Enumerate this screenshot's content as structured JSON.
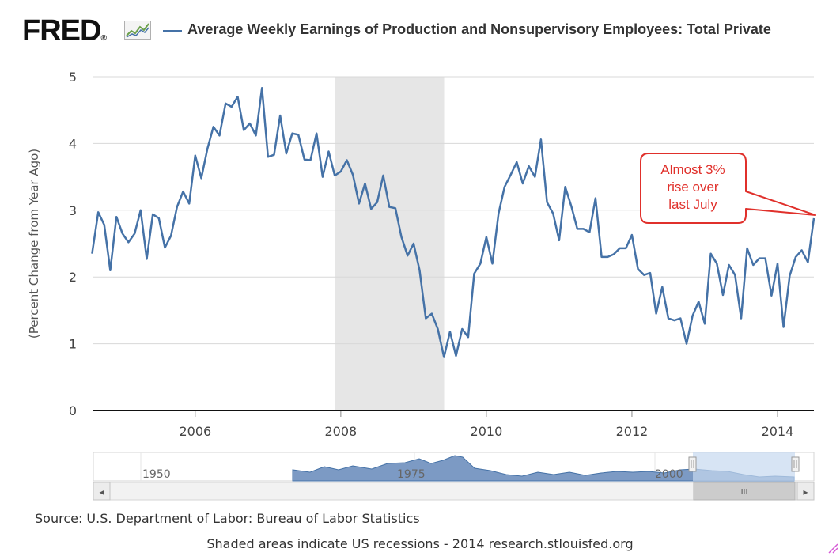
{
  "header": {
    "logo_text": "FRED",
    "logo_mark": "®",
    "legend_series_name": "Average Weekly Earnings of Production and Nonsupervisory Employees: Total Private"
  },
  "footer": {
    "source": "Source: U.S. Department of Labor: Bureau of Labor Statistics",
    "note": "Shaded areas indicate US recessions - 2014 research.stlouisfed.org"
  },
  "annotation": {
    "lines": [
      "Almost 3%",
      "rise over",
      "last July"
    ]
  },
  "navigator": {
    "labels": [
      "1950",
      "1975",
      "2000"
    ],
    "scroll_left_arrow": "◂",
    "scroll_right_arrow": "▸",
    "scroll_grip": "III"
  },
  "colors": {
    "series": "#4572a7",
    "recession": "#e6e6e6",
    "annotation": "#e0302b",
    "navigator_fill": "#7c9ac4",
    "navigator_selection": "#c6d9f0"
  },
  "chart_data": {
    "type": "line",
    "title": "Average Weekly Earnings of Production and Nonsupervisory Employees: Total Private",
    "ylabel": "(Percent Change from Year Ago)",
    "xlabel": "",
    "xlim": [
      2004.6,
      2014.5
    ],
    "ylim": [
      0,
      5
    ],
    "yticks": [
      0,
      1,
      2,
      3,
      4,
      5
    ],
    "xticks": [
      2006,
      2008,
      2010,
      2012,
      2014
    ],
    "grid": true,
    "recession": [
      2007.92,
      2009.42
    ],
    "series": [
      {
        "name": "Average Weekly Earnings of Production and Nonsupervisory Employees: Total Private",
        "x": [
          2004.583,
          2004.667,
          2004.75,
          2004.833,
          2004.917,
          2005.0,
          2005.083,
          2005.167,
          2005.25,
          2005.333,
          2005.417,
          2005.5,
          2005.583,
          2005.667,
          2005.75,
          2005.833,
          2005.917,
          2006.0,
          2006.083,
          2006.167,
          2006.25,
          2006.333,
          2006.417,
          2006.5,
          2006.583,
          2006.667,
          2006.75,
          2006.833,
          2006.917,
          2007.0,
          2007.083,
          2007.167,
          2007.25,
          2007.333,
          2007.417,
          2007.5,
          2007.583,
          2007.667,
          2007.75,
          2007.833,
          2007.917,
          2008.0,
          2008.083,
          2008.167,
          2008.25,
          2008.333,
          2008.417,
          2008.5,
          2008.583,
          2008.667,
          2008.75,
          2008.833,
          2008.917,
          2009.0,
          2009.083,
          2009.167,
          2009.25,
          2009.333,
          2009.417,
          2009.5,
          2009.583,
          2009.667,
          2009.75,
          2009.833,
          2009.917,
          2010.0,
          2010.083,
          2010.167,
          2010.25,
          2010.333,
          2010.417,
          2010.5,
          2010.583,
          2010.667,
          2010.75,
          2010.833,
          2010.917,
          2011.0,
          2011.083,
          2011.167,
          2011.25,
          2011.333,
          2011.417,
          2011.5,
          2011.583,
          2011.667,
          2011.75,
          2011.833,
          2011.917,
          2012.0,
          2012.083,
          2012.167,
          2012.25,
          2012.333,
          2012.417,
          2012.5,
          2012.583,
          2012.667,
          2012.75,
          2012.833,
          2012.917,
          2013.0,
          2013.083,
          2013.167,
          2013.25,
          2013.333,
          2013.417,
          2013.5,
          2013.583,
          2013.667,
          2013.75,
          2013.833,
          2013.917,
          2014.0,
          2014.083,
          2014.167,
          2014.25,
          2014.333,
          2014.417,
          2014.5
        ],
        "values": [
          2.35,
          2.97,
          2.78,
          2.1,
          2.9,
          2.65,
          2.52,
          2.65,
          3.0,
          2.27,
          2.94,
          2.88,
          2.44,
          2.62,
          3.05,
          3.28,
          3.1,
          3.82,
          3.48,
          3.92,
          4.25,
          4.12,
          4.6,
          4.55,
          4.7,
          4.2,
          4.3,
          4.12,
          4.83,
          3.8,
          3.83,
          4.42,
          3.85,
          4.15,
          4.13,
          3.76,
          3.75,
          4.15,
          3.5,
          3.88,
          3.52,
          3.58,
          3.75,
          3.53,
          3.1,
          3.4,
          3.02,
          3.12,
          3.52,
          3.05,
          3.03,
          2.6,
          2.32,
          2.5,
          2.1,
          1.38,
          1.45,
          1.22,
          0.8,
          1.18,
          0.82,
          1.22,
          1.1,
          2.05,
          2.2,
          2.6,
          2.2,
          2.95,
          3.35,
          3.53,
          3.72,
          3.4,
          3.66,
          3.5,
          4.06,
          3.12,
          2.95,
          2.55,
          3.35,
          3.06,
          2.72,
          2.72,
          2.67,
          3.18,
          2.3,
          2.3,
          2.34,
          2.43,
          2.43,
          2.63,
          2.12,
          2.03,
          2.06,
          1.45,
          1.85,
          1.38,
          1.35,
          1.38,
          1.0,
          1.42,
          1.63,
          1.3,
          2.35,
          2.2,
          1.73,
          2.18,
          2.03,
          1.38,
          2.43,
          2.18,
          2.28,
          2.28,
          1.72,
          2.2,
          1.25,
          2.02,
          2.3,
          2.4,
          2.22,
          2.88
        ]
      }
    ]
  }
}
